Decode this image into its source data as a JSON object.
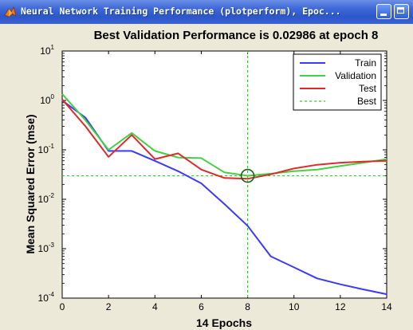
{
  "window": {
    "title": "Neural Network Training Performance (plotperform), Epoc...",
    "icon": "matlab-icon",
    "controls": [
      "minimize",
      "maximize"
    ]
  },
  "chart_data": {
    "type": "line",
    "title": "Best Validation Performance is 0.02986 at epoch 8",
    "xlabel": "14 Epochs",
    "ylabel": "Mean Squared Error  (mse)",
    "xlim": [
      0,
      14
    ],
    "ylim": [
      0.0001,
      10
    ],
    "yscale": "log",
    "xticks": [
      "0",
      "2",
      "4",
      "6",
      "8",
      "10",
      "12",
      "14"
    ],
    "yticks": [
      {
        "base": "10",
        "exp": "1",
        "value": 10
      },
      {
        "base": "10",
        "exp": "0",
        "value": 1
      },
      {
        "base": "10",
        "exp": "-1",
        "value": 0.1
      },
      {
        "base": "10",
        "exp": "-2",
        "value": 0.01
      },
      {
        "base": "10",
        "exp": "-3",
        "value": 0.001
      },
      {
        "base": "10",
        "exp": "-4",
        "value": 0.0001
      }
    ],
    "grid": false,
    "legend_position": "top-right",
    "series": [
      {
        "name": "Train",
        "color": "#3a3aff",
        "dash": false,
        "x": [
          0,
          1,
          2,
          3,
          4,
          5,
          6,
          7,
          8,
          9,
          10,
          11,
          12,
          13,
          14
        ],
        "y": [
          1.0,
          0.45,
          0.095,
          0.095,
          0.06,
          0.037,
          0.021,
          0.008,
          0.0029,
          0.0007,
          0.00042,
          0.00025,
          0.00019,
          0.00015,
          0.00012
        ]
      },
      {
        "name": "Validation",
        "color": "#44d044",
        "dash": false,
        "x": [
          0,
          1,
          2,
          3,
          4,
          5,
          6,
          7,
          8,
          9,
          10,
          11,
          12,
          13,
          14
        ],
        "y": [
          1.35,
          0.4,
          0.1,
          0.22,
          0.095,
          0.07,
          0.068,
          0.035,
          0.02986,
          0.033,
          0.037,
          0.04,
          0.047,
          0.055,
          0.065
        ]
      },
      {
        "name": "Test",
        "color": "#e02a2a",
        "dash": false,
        "x": [
          0,
          1,
          2,
          3,
          4,
          5,
          6,
          7,
          8,
          9,
          10,
          11,
          12,
          13,
          14
        ],
        "y": [
          1.05,
          0.3,
          0.072,
          0.2,
          0.065,
          0.085,
          0.04,
          0.027,
          0.026,
          0.032,
          0.042,
          0.05,
          0.055,
          0.058,
          0.06
        ]
      },
      {
        "name": "Best",
        "color": "#44c044",
        "dash": true
      }
    ],
    "best": {
      "epoch": 8,
      "value": 0.02986
    }
  }
}
